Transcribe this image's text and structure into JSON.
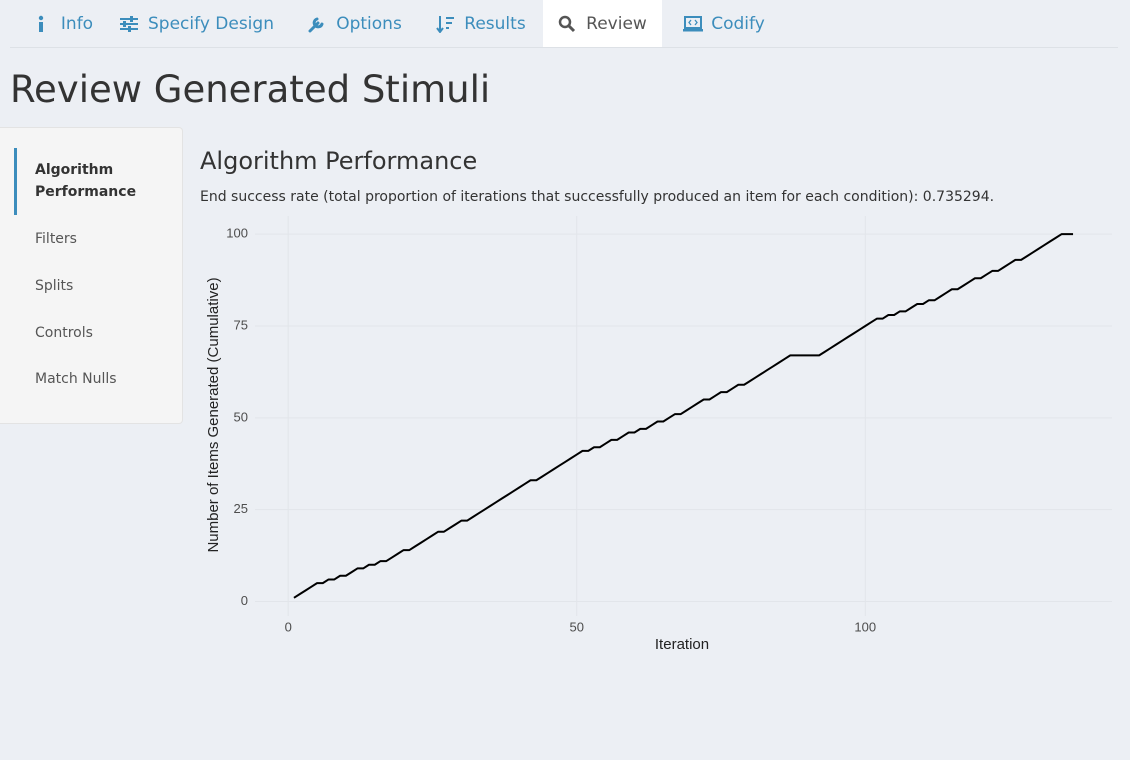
{
  "tabs": [
    "Info",
    "Specify Design",
    "Options",
    "Results",
    "Review",
    "Codify"
  ],
  "active_tab": 4,
  "page_title": "Review Generated Stimuli",
  "sidebar": {
    "items": [
      "Algorithm Performance",
      "Filters",
      "Splits",
      "Controls",
      "Match Nulls"
    ],
    "active": 0
  },
  "section": {
    "heading": "Algorithm Performance",
    "description": "End success rate (total proportion of iterations that successfully produced an item for each condition): 0.735294."
  },
  "chart_data": {
    "type": "line",
    "xlabel": "Iteration",
    "ylabel": "Number of Items Generated (Cumulative)",
    "x": [
      1,
      2,
      3,
      4,
      5,
      6,
      7,
      8,
      9,
      10,
      11,
      12,
      13,
      14,
      15,
      16,
      17,
      18,
      19,
      20,
      21,
      22,
      23,
      24,
      25,
      26,
      27,
      28,
      29,
      30,
      31,
      32,
      33,
      34,
      35,
      36,
      37,
      38,
      39,
      40,
      41,
      42,
      43,
      44,
      45,
      46,
      47,
      48,
      49,
      50,
      51,
      52,
      53,
      54,
      55,
      56,
      57,
      58,
      59,
      60,
      61,
      62,
      63,
      64,
      65,
      66,
      67,
      68,
      69,
      70,
      71,
      72,
      73,
      74,
      75,
      76,
      77,
      78,
      79,
      80,
      81,
      82,
      83,
      84,
      85,
      86,
      87,
      88,
      89,
      90,
      91,
      92,
      93,
      94,
      95,
      96,
      97,
      98,
      99,
      100,
      101,
      102,
      103,
      104,
      105,
      106,
      107,
      108,
      109,
      110,
      111,
      112,
      113,
      114,
      115,
      116,
      117,
      118,
      119,
      120,
      121,
      122,
      123,
      124,
      125,
      126,
      127,
      128,
      129,
      130,
      131,
      132,
      133,
      134,
      135,
      136
    ],
    "values": [
      1,
      2,
      3,
      4,
      5,
      5,
      6,
      6,
      7,
      7,
      8,
      9,
      9,
      10,
      10,
      11,
      11,
      12,
      13,
      14,
      14,
      15,
      16,
      17,
      18,
      19,
      19,
      20,
      21,
      22,
      22,
      23,
      24,
      25,
      26,
      27,
      28,
      29,
      30,
      31,
      32,
      33,
      33,
      34,
      35,
      36,
      37,
      38,
      39,
      40,
      41,
      41,
      42,
      42,
      43,
      44,
      44,
      45,
      46,
      46,
      47,
      47,
      48,
      49,
      49,
      50,
      51,
      51,
      52,
      53,
      54,
      55,
      55,
      56,
      57,
      57,
      58,
      59,
      59,
      60,
      61,
      62,
      63,
      64,
      65,
      66,
      67,
      67,
      67,
      67,
      67,
      67,
      68,
      69,
      70,
      71,
      72,
      73,
      74,
      75,
      76,
      77,
      77,
      78,
      78,
      79,
      79,
      80,
      81,
      81,
      82,
      82,
      83,
      84,
      85,
      85,
      86,
      87,
      88,
      88,
      89,
      90,
      90,
      91,
      92,
      93,
      93,
      94,
      95,
      96,
      97,
      98,
      99,
      100,
      100,
      100
    ],
    "color": "#000000",
    "xlim": [
      -5.75,
      142.75
    ],
    "ylim": [
      -3.95,
      104.95
    ],
    "xticks": [
      0,
      50,
      100
    ],
    "yticks": [
      0,
      25,
      50,
      75,
      100
    ],
    "grid": true
  }
}
